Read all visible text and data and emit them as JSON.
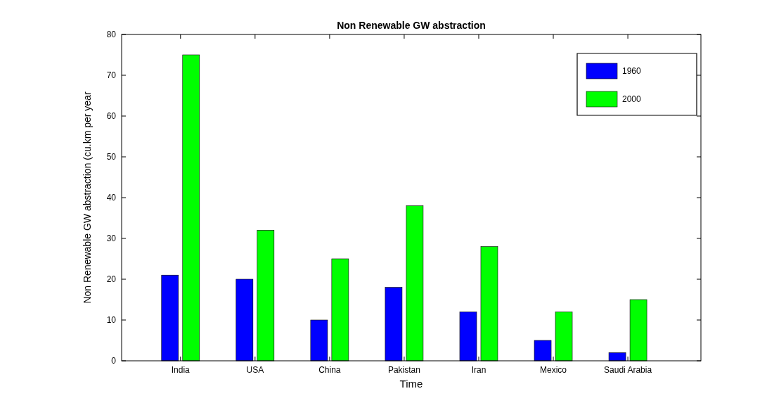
{
  "chart_data": {
    "type": "bar",
    "title": "Non Renewable GW abstraction",
    "xlabel": "Time",
    "ylabel": "Non Renewable GW abstraction (cu.km per year",
    "categories": [
      "India",
      "USA",
      "China",
      "Pakistan",
      "Iran",
      "Mexico",
      "Saudi Arabia"
    ],
    "series": [
      {
        "name": "1960",
        "color": "#0000ff",
        "values": [
          21,
          20,
          10,
          18,
          12,
          5,
          2
        ]
      },
      {
        "name": "2000",
        "color": "#00ff00",
        "values": [
          75,
          32,
          25,
          38,
          28,
          12,
          15
        ]
      }
    ],
    "ylim": [
      0,
      80
    ],
    "yticks": [
      0,
      10,
      20,
      30,
      40,
      50,
      60,
      70,
      80
    ],
    "grid": false,
    "legend": "top right"
  }
}
